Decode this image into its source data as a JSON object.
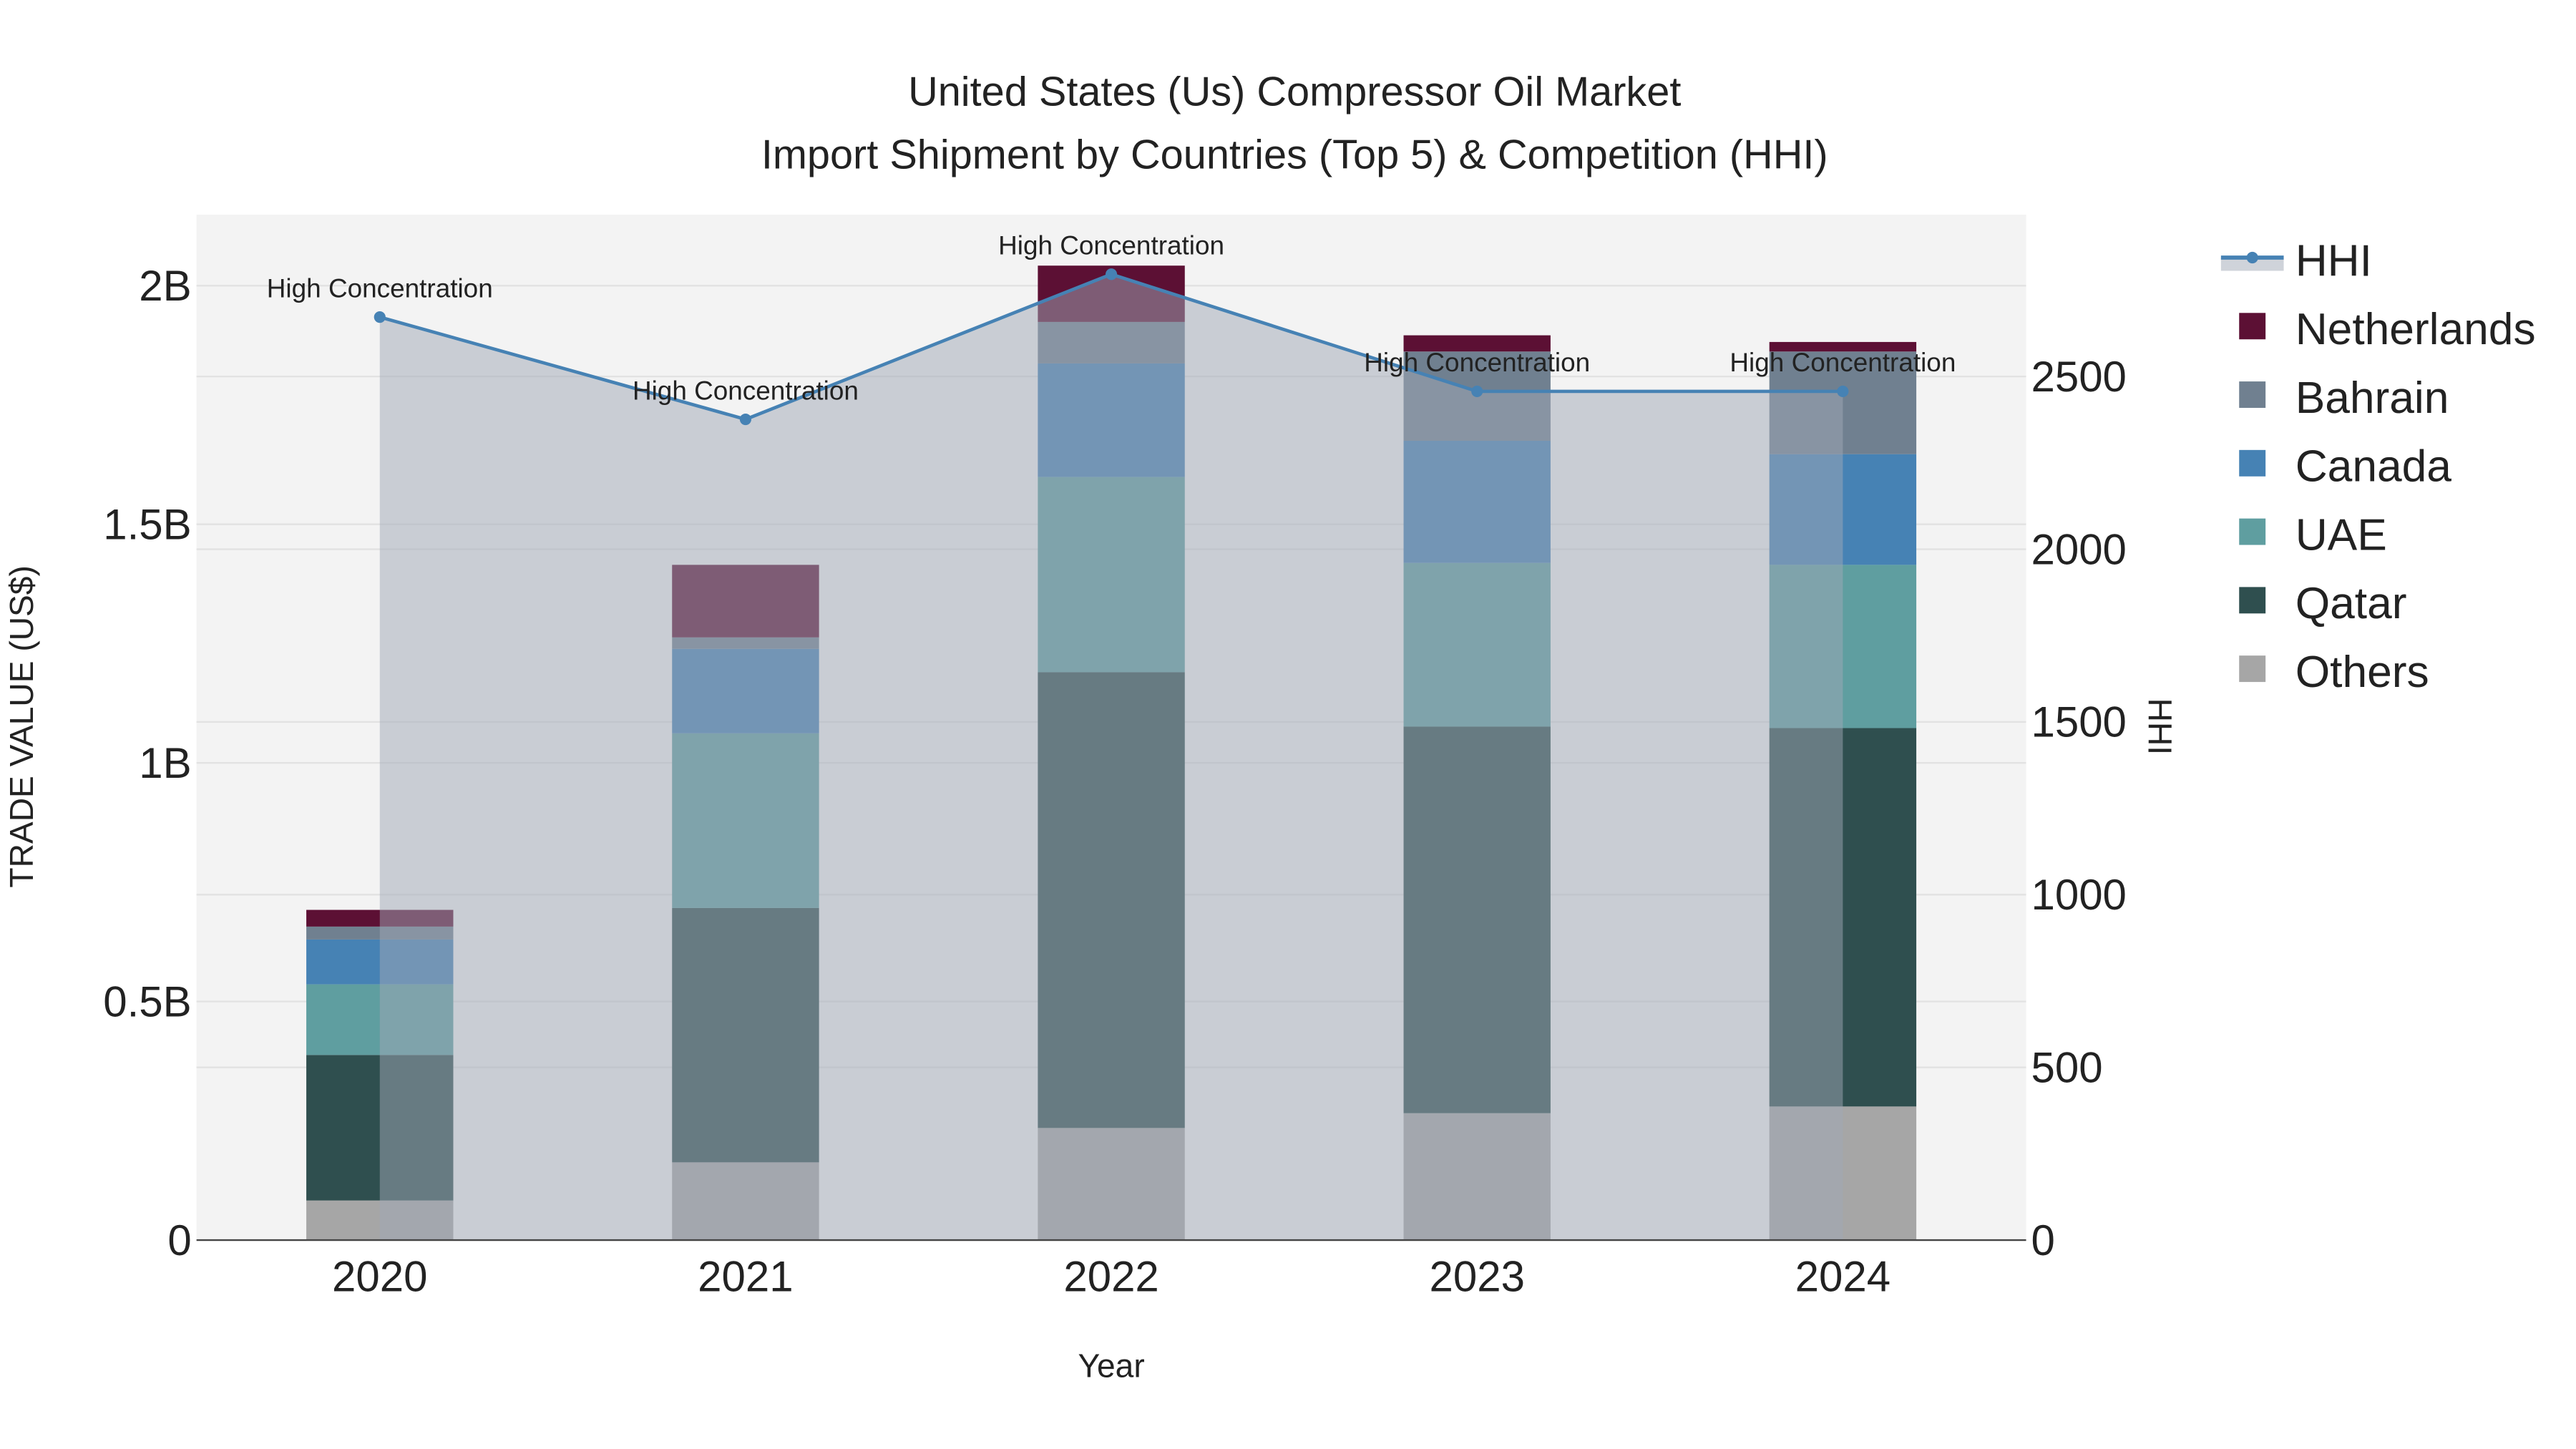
{
  "chart_data": {
    "type": "bar",
    "title": "United States (Us) Compressor Oil Market",
    "subtitle": "Import Shipment by Countries (Top 5) & Competition (HHI)",
    "xlabel": "Year",
    "ylabel": "TRADE VALUE (US$)",
    "y2label": "HHI",
    "categories": [
      "2020",
      "2021",
      "2022",
      "2023",
      "2024"
    ],
    "ylim": [
      0,
      2150000000
    ],
    "y2lim": [
      0,
      2960
    ],
    "yticks": [
      {
        "v": 0,
        "label": "0"
      },
      {
        "v": 500000000,
        "label": "0.5B"
      },
      {
        "v": 1000000000,
        "label": "1B"
      },
      {
        "v": 1500000000,
        "label": "1.5B"
      },
      {
        "v": 2000000000,
        "label": "2B"
      }
    ],
    "y2ticks": [
      {
        "v": 0,
        "label": "0"
      },
      {
        "v": 500,
        "label": "500"
      },
      {
        "v": 1000,
        "label": "1000"
      },
      {
        "v": 1500,
        "label": "1500"
      },
      {
        "v": 2000,
        "label": "2000"
      },
      {
        "v": 2500,
        "label": "2500"
      }
    ],
    "stacked": true,
    "series": [
      {
        "name": "Others",
        "color": "#a6a6a6",
        "values": [
          83000000,
          163000000,
          235000000,
          266000000,
          280000000
        ]
      },
      {
        "name": "Qatar",
        "color": "#2f4f4f",
        "values": [
          305000000,
          533000000,
          955000000,
          810000000,
          793000000
        ]
      },
      {
        "name": "UAE",
        "color": "#5f9ea0",
        "values": [
          148000000,
          366000000,
          409000000,
          343000000,
          342000000
        ]
      },
      {
        "name": "Canada",
        "color": "#4682b4",
        "values": [
          94000000,
          177000000,
          238000000,
          256000000,
          232000000
        ]
      },
      {
        "name": "Bahrain",
        "color": "#708090",
        "values": [
          27000000,
          24000000,
          87000000,
          187000000,
          215000000
        ]
      },
      {
        "name": "Netherlands",
        "color": "#5c1034",
        "values": [
          35000000,
          152000000,
          118000000,
          34000000,
          20000000
        ]
      }
    ],
    "hhi": {
      "name": "HHI",
      "color": "#4682b4",
      "values": [
        2672,
        2376,
        2796,
        2457,
        2457
      ]
    },
    "annotations": [
      "High Concentration",
      "High Concentration",
      "High Concentration",
      "High Concentration",
      "High Concentration"
    ],
    "legend_position": "right",
    "legend_order": [
      "HHI",
      "Netherlands",
      "Bahrain",
      "Canada",
      "UAE",
      "Qatar",
      "Others"
    ],
    "grid": true
  }
}
